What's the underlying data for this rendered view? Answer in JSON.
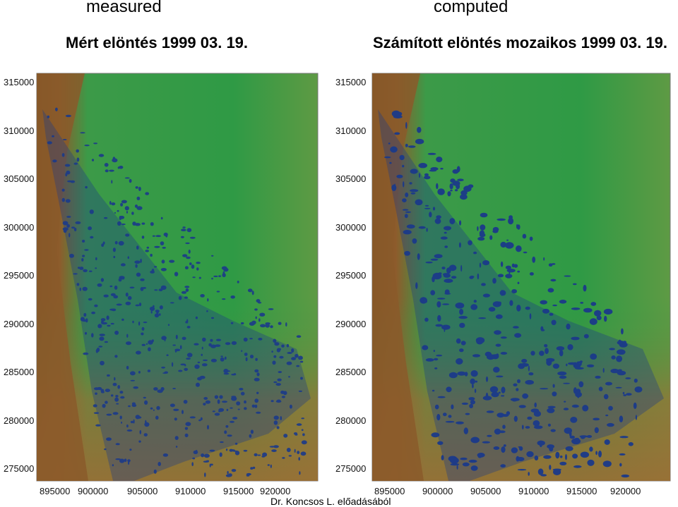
{
  "header": {
    "left_caption": "measured",
    "right_caption": "computed"
  },
  "maps": [
    {
      "title": "Mért elöntés 1999 03. 19.",
      "y_ticks": [
        "315000",
        "310000",
        "305000",
        "300000",
        "295000",
        "290000",
        "285000",
        "280000",
        "275000"
      ],
      "x_ticks": [
        "895000",
        "900000",
        "905000",
        "910000",
        "915000",
        "920000"
      ]
    },
    {
      "title": "Számított elöntés mozaikos 1999 03. 19.",
      "y_ticks": [
        "315000",
        "310000",
        "305000",
        "300000",
        "295000",
        "290000",
        "285000",
        "280000",
        "275000"
      ],
      "x_ticks": [
        "895000",
        "900000",
        "905000",
        "910000",
        "915000",
        "920000"
      ]
    }
  ],
  "footer": "Dr. Koncsos L. előadásából",
  "colors": {
    "lowland_green": "#2f9a45",
    "terrain_brown": "#8a5a2a",
    "water_blue": "#1b3a8a"
  }
}
